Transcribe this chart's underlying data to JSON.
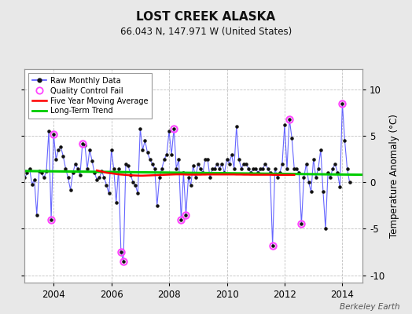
{
  "title": "LOST CREEK ALASKA",
  "subtitle": "66.043 N, 147.971 W (United States)",
  "ylabel": "Temperature Anomaly (°C)",
  "credit": "Berkeley Earth",
  "xlim": [
    2003.0,
    2014.7
  ],
  "ylim": [
    -10.8,
    12.2
  ],
  "yticks": [
    -10,
    -5,
    0,
    5,
    10
  ],
  "xticks": [
    2004,
    2006,
    2008,
    2010,
    2012,
    2014
  ],
  "background_color": "#e8e8e8",
  "plot_bg_color": "#ffffff",
  "grid_color": "#bbbbbb",
  "line_color": "#5555ff",
  "dot_color": "#111111",
  "ma_color": "#ff0000",
  "trend_color": "#00cc00",
  "qc_color": "#ff44ff",
  "raw_data": [
    [
      2003.0,
      0.5
    ],
    [
      2003.083,
      1.0
    ],
    [
      2003.167,
      1.5
    ],
    [
      2003.25,
      -0.2
    ],
    [
      2003.333,
      0.3
    ],
    [
      2003.417,
      -3.5
    ],
    [
      2003.5,
      1.2
    ],
    [
      2003.583,
      1.0
    ],
    [
      2003.667,
      0.5
    ],
    [
      2003.75,
      1.2
    ],
    [
      2003.833,
      5.5
    ],
    [
      2003.917,
      -4.0
    ],
    [
      2004.0,
      5.2
    ],
    [
      2004.083,
      2.5
    ],
    [
      2004.167,
      3.5
    ],
    [
      2004.25,
      3.8
    ],
    [
      2004.333,
      2.8
    ],
    [
      2004.417,
      1.5
    ],
    [
      2004.5,
      0.5
    ],
    [
      2004.583,
      -0.8
    ],
    [
      2004.667,
      1.0
    ],
    [
      2004.75,
      2.0
    ],
    [
      2004.833,
      1.5
    ],
    [
      2004.917,
      0.8
    ],
    [
      2005.0,
      4.2
    ],
    [
      2005.083,
      4.0
    ],
    [
      2005.167,
      1.5
    ],
    [
      2005.25,
      3.5
    ],
    [
      2005.333,
      2.3
    ],
    [
      2005.417,
      1.0
    ],
    [
      2005.5,
      0.3
    ],
    [
      2005.583,
      0.5
    ],
    [
      2005.667,
      1.2
    ],
    [
      2005.75,
      0.5
    ],
    [
      2005.833,
      -0.3
    ],
    [
      2005.917,
      -1.2
    ],
    [
      2006.0,
      3.5
    ],
    [
      2006.083,
      1.5
    ],
    [
      2006.167,
      -2.2
    ],
    [
      2006.25,
      1.5
    ],
    [
      2006.333,
      -7.5
    ],
    [
      2006.417,
      -8.5
    ],
    [
      2006.5,
      2.0
    ],
    [
      2006.583,
      1.8
    ],
    [
      2006.667,
      0.8
    ],
    [
      2006.75,
      0.0
    ],
    [
      2006.833,
      -0.3
    ],
    [
      2006.917,
      -1.2
    ],
    [
      2007.0,
      5.8
    ],
    [
      2007.083,
      3.5
    ],
    [
      2007.167,
      4.5
    ],
    [
      2007.25,
      3.2
    ],
    [
      2007.333,
      2.5
    ],
    [
      2007.417,
      2.0
    ],
    [
      2007.5,
      1.5
    ],
    [
      2007.583,
      -2.5
    ],
    [
      2007.667,
      0.5
    ],
    [
      2007.75,
      1.5
    ],
    [
      2007.833,
      2.5
    ],
    [
      2007.917,
      3.0
    ],
    [
      2008.0,
      5.5
    ],
    [
      2008.083,
      3.0
    ],
    [
      2008.167,
      5.8
    ],
    [
      2008.25,
      1.5
    ],
    [
      2008.333,
      2.5
    ],
    [
      2008.417,
      -4.0
    ],
    [
      2008.5,
      1.0
    ],
    [
      2008.583,
      -3.5
    ],
    [
      2008.667,
      0.5
    ],
    [
      2008.75,
      -0.3
    ],
    [
      2008.833,
      1.8
    ],
    [
      2008.917,
      0.5
    ],
    [
      2009.0,
      2.0
    ],
    [
      2009.083,
      1.5
    ],
    [
      2009.167,
      1.0
    ],
    [
      2009.25,
      2.5
    ],
    [
      2009.333,
      2.5
    ],
    [
      2009.417,
      0.5
    ],
    [
      2009.5,
      1.5
    ],
    [
      2009.583,
      1.5
    ],
    [
      2009.667,
      2.0
    ],
    [
      2009.75,
      1.5
    ],
    [
      2009.833,
      2.0
    ],
    [
      2009.917,
      1.0
    ],
    [
      2010.0,
      2.5
    ],
    [
      2010.083,
      2.0
    ],
    [
      2010.167,
      3.0
    ],
    [
      2010.25,
      1.5
    ],
    [
      2010.333,
      6.0
    ],
    [
      2010.417,
      2.5
    ],
    [
      2010.5,
      1.5
    ],
    [
      2010.583,
      2.0
    ],
    [
      2010.667,
      2.0
    ],
    [
      2010.75,
      1.5
    ],
    [
      2010.833,
      1.0
    ],
    [
      2010.917,
      1.5
    ],
    [
      2011.0,
      1.5
    ],
    [
      2011.083,
      1.0
    ],
    [
      2011.167,
      1.5
    ],
    [
      2011.25,
      1.5
    ],
    [
      2011.333,
      2.0
    ],
    [
      2011.417,
      1.5
    ],
    [
      2011.5,
      1.0
    ],
    [
      2011.583,
      -6.8
    ],
    [
      2011.667,
      1.5
    ],
    [
      2011.75,
      0.5
    ],
    [
      2011.833,
      1.0
    ],
    [
      2011.917,
      2.0
    ],
    [
      2012.0,
      6.2
    ],
    [
      2012.083,
      1.5
    ],
    [
      2012.167,
      6.8
    ],
    [
      2012.25,
      4.8
    ],
    [
      2012.333,
      1.5
    ],
    [
      2012.417,
      1.5
    ],
    [
      2012.5,
      1.0
    ],
    [
      2012.583,
      -4.5
    ],
    [
      2012.667,
      0.5
    ],
    [
      2012.75,
      2.0
    ],
    [
      2012.833,
      0.0
    ],
    [
      2012.917,
      -1.0
    ],
    [
      2013.0,
      2.5
    ],
    [
      2013.083,
      0.5
    ],
    [
      2013.167,
      1.5
    ],
    [
      2013.25,
      3.5
    ],
    [
      2013.333,
      -1.0
    ],
    [
      2013.417,
      -5.0
    ],
    [
      2013.5,
      1.0
    ],
    [
      2013.583,
      0.5
    ],
    [
      2013.667,
      1.5
    ],
    [
      2013.75,
      2.0
    ],
    [
      2013.833,
      1.0
    ],
    [
      2013.917,
      -0.5
    ],
    [
      2014.0,
      8.5
    ],
    [
      2014.083,
      4.5
    ],
    [
      2014.167,
      1.5
    ],
    [
      2014.25,
      0.0
    ]
  ],
  "qc_fail": [
    [
      2003.917,
      -4.0
    ],
    [
      2004.0,
      5.2
    ],
    [
      2005.0,
      4.2
    ],
    [
      2006.333,
      -7.5
    ],
    [
      2006.417,
      -8.5
    ],
    [
      2008.167,
      5.8
    ],
    [
      2008.417,
      -4.0
    ],
    [
      2008.583,
      -3.5
    ],
    [
      2011.583,
      -6.8
    ],
    [
      2012.167,
      6.8
    ],
    [
      2012.583,
      -4.5
    ],
    [
      2014.0,
      8.5
    ]
  ],
  "moving_avg": [
    [
      2005.5,
      1.28
    ],
    [
      2005.583,
      1.22
    ],
    [
      2005.667,
      1.16
    ],
    [
      2005.75,
      1.1
    ],
    [
      2005.833,
      1.04
    ],
    [
      2005.917,
      1.0
    ],
    [
      2006.0,
      0.98
    ],
    [
      2006.083,
      0.94
    ],
    [
      2006.167,
      0.9
    ],
    [
      2006.25,
      0.86
    ],
    [
      2006.333,
      0.84
    ],
    [
      2006.417,
      0.82
    ],
    [
      2006.5,
      0.8
    ],
    [
      2006.583,
      0.78
    ],
    [
      2006.667,
      0.76
    ],
    [
      2006.75,
      0.75
    ],
    [
      2006.833,
      0.74
    ],
    [
      2006.917,
      0.73
    ],
    [
      2007.0,
      0.72
    ],
    [
      2007.083,
      0.72
    ],
    [
      2007.167,
      0.73
    ],
    [
      2007.25,
      0.74
    ],
    [
      2007.333,
      0.75
    ],
    [
      2007.417,
      0.76
    ],
    [
      2007.5,
      0.77
    ],
    [
      2007.583,
      0.78
    ],
    [
      2007.667,
      0.79
    ],
    [
      2007.75,
      0.8
    ],
    [
      2007.833,
      0.81
    ],
    [
      2007.917,
      0.82
    ],
    [
      2008.0,
      0.83
    ],
    [
      2008.083,
      0.84
    ],
    [
      2008.167,
      0.85
    ],
    [
      2008.25,
      0.86
    ],
    [
      2008.333,
      0.86
    ],
    [
      2008.417,
      0.86
    ],
    [
      2008.5,
      0.85
    ],
    [
      2008.583,
      0.84
    ],
    [
      2008.667,
      0.83
    ],
    [
      2008.75,
      0.83
    ],
    [
      2008.833,
      0.83
    ],
    [
      2008.917,
      0.83
    ],
    [
      2009.0,
      0.83
    ],
    [
      2009.083,
      0.83
    ],
    [
      2009.167,
      0.84
    ],
    [
      2009.25,
      0.84
    ],
    [
      2009.333,
      0.85
    ],
    [
      2009.417,
      0.85
    ],
    [
      2009.5,
      0.85
    ],
    [
      2009.583,
      0.85
    ],
    [
      2009.667,
      0.85
    ],
    [
      2009.75,
      0.85
    ],
    [
      2009.833,
      0.85
    ],
    [
      2009.917,
      0.85
    ],
    [
      2010.0,
      0.85
    ],
    [
      2010.083,
      0.85
    ],
    [
      2010.167,
      0.85
    ],
    [
      2010.25,
      0.85
    ],
    [
      2010.333,
      0.84
    ],
    [
      2010.417,
      0.84
    ],
    [
      2010.5,
      0.84
    ],
    [
      2010.583,
      0.83
    ],
    [
      2010.667,
      0.83
    ],
    [
      2010.75,
      0.83
    ],
    [
      2010.833,
      0.82
    ],
    [
      2010.917,
      0.82
    ],
    [
      2011.0,
      0.82
    ],
    [
      2011.083,
      0.82
    ],
    [
      2011.167,
      0.82
    ],
    [
      2011.25,
      0.82
    ],
    [
      2011.333,
      0.82
    ],
    [
      2011.417,
      0.82
    ],
    [
      2011.5,
      0.82
    ],
    [
      2011.583,
      0.81
    ],
    [
      2011.667,
      0.81
    ],
    [
      2011.75,
      0.81
    ],
    [
      2011.833,
      0.8
    ],
    [
      2011.917,
      0.8
    ],
    [
      2012.0,
      0.8
    ],
    [
      2012.083,
      0.8
    ],
    [
      2012.167,
      0.8
    ],
    [
      2012.25,
      0.8
    ],
    [
      2012.333,
      0.8
    ]
  ],
  "trend_x": [
    2003.0,
    2014.7
  ],
  "trend_y": [
    1.22,
    0.82
  ]
}
